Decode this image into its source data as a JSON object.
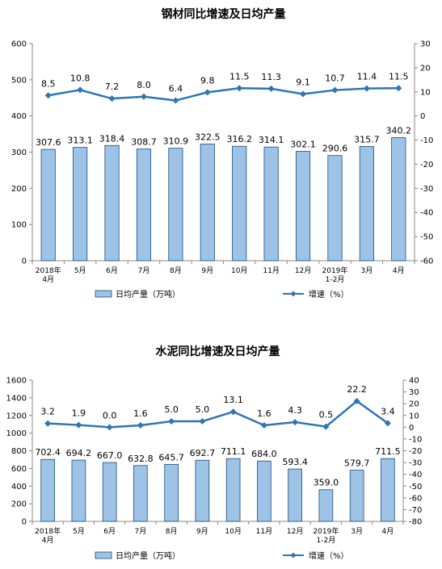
{
  "chart_data": [
    {
      "type": "bar+line",
      "title": "钢材同比增速及日均产量",
      "categories": [
        "2018年\n4月",
        "5月",
        "6月",
        "7月",
        "8月",
        "9月",
        "10月",
        "11月",
        "12月",
        "2019年\n1-2月",
        "3月",
        "4月"
      ],
      "series": [
        {
          "name": "日均产量（万吨）",
          "type": "bar",
          "axis": "left",
          "values": [
            307.6,
            313.1,
            318.4,
            308.7,
            310.9,
            322.5,
            316.2,
            314.1,
            302.1,
            290.6,
            315.7,
            340.2
          ]
        },
        {
          "name": "增速（%）",
          "type": "line",
          "axis": "right",
          "values": [
            8.5,
            10.8,
            7.2,
            8.0,
            6.4,
            9.8,
            11.5,
            11.3,
            9.1,
            10.7,
            11.4,
            11.5
          ]
        }
      ],
      "left_axis": {
        "min": 0,
        "max": 600,
        "step": 100
      },
      "right_axis": {
        "min": -60,
        "max": 30,
        "step": 10
      },
      "bar_label_decimals": 1,
      "legend_placement": "bottom",
      "colors": {
        "bar_fill": "#9dc3e6",
        "bar_stroke": "#1f4e79",
        "line": "#2e75b6"
      }
    },
    {
      "type": "bar+line",
      "title": "水泥同比增速及日均产量",
      "categories": [
        "2018年\n4月",
        "5月",
        "6月",
        "7月",
        "8月",
        "9月",
        "10月",
        "11月",
        "12月",
        "2019年\n1-2月",
        "3月",
        "4月"
      ],
      "series": [
        {
          "name": "日均产量（万吨）",
          "type": "bar",
          "axis": "left",
          "values": [
            702.4,
            694.2,
            667.0,
            632.8,
            645.7,
            692.7,
            711.1,
            684.0,
            593.4,
            359.0,
            579.7,
            711.5
          ]
        },
        {
          "name": "增速（%）",
          "type": "line",
          "axis": "right",
          "values": [
            3.2,
            1.9,
            0.0,
            1.6,
            5.0,
            5.0,
            13.1,
            1.6,
            4.3,
            0.5,
            22.2,
            3.4
          ]
        }
      ],
      "left_axis": {
        "min": 0,
        "max": 1600,
        "step": 200
      },
      "right_axis": {
        "min": -80,
        "max": 40,
        "step": 10
      },
      "bar_label_decimals": 1,
      "legend_placement": "bottom",
      "colors": {
        "bar_fill": "#9dc3e6",
        "bar_stroke": "#1f4e79",
        "line": "#2e75b6"
      }
    }
  ]
}
